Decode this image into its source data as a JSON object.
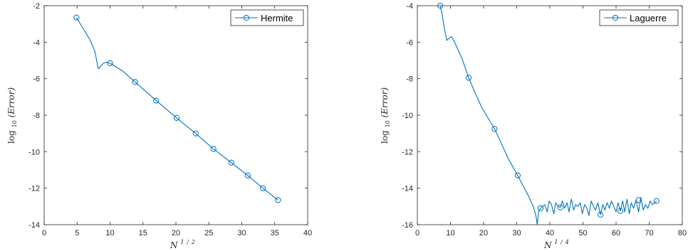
{
  "colors": {
    "line": "#0072bd",
    "axis": "#262626",
    "background": "#ffffff"
  },
  "chart_data": [
    {
      "type": "line",
      "title": "",
      "xlabel": {
        "base": "N",
        "exp_num": "1",
        "exp_den": "2"
      },
      "ylabel": {
        "prefix": "log",
        "sub": "10",
        "inner": "(Error)"
      },
      "xlim": [
        0,
        40
      ],
      "ylim": [
        -14,
        -2
      ],
      "xticks": [
        0,
        5,
        10,
        15,
        20,
        25,
        30,
        35,
        40
      ],
      "yticks": [
        -14,
        -12,
        -10,
        -8,
        -6,
        -4,
        -2
      ],
      "xtick_labels": [
        "0",
        "5",
        "10",
        "15",
        "20",
        "25",
        "30",
        "35",
        "40"
      ],
      "ytick_labels": [
        "-14",
        "-12",
        "-10",
        "-8",
        "-6",
        "-4",
        "-2"
      ],
      "grid": false,
      "legend_position": "top-right",
      "series": [
        {
          "name": "Hermite",
          "marker": "circle",
          "x": [
            4.9,
            6.0,
            7.0,
            7.7,
            8.2,
            8.5,
            9.0,
            9.5,
            10.0,
            12.0,
            13.8,
            17.0,
            20.1,
            23.0,
            25.7,
            28.4,
            30.9,
            33.2,
            35.5
          ],
          "y": [
            -2.65,
            -3.3,
            -3.9,
            -4.5,
            -5.45,
            -5.35,
            -5.15,
            -5.1,
            -5.15,
            -5.6,
            -6.18,
            -7.2,
            -8.15,
            -9.0,
            -9.85,
            -10.6,
            -11.3,
            -12.0,
            -12.65
          ],
          "marker_x": [
            4.9,
            10.0,
            13.8,
            17.0,
            20.1,
            23.0,
            25.7,
            28.4,
            30.9,
            33.2,
            35.5
          ],
          "marker_y": [
            -2.65,
            -5.15,
            -6.18,
            -7.2,
            -8.15,
            -9.0,
            -9.85,
            -10.6,
            -11.3,
            -12.0,
            -12.65
          ]
        }
      ]
    },
    {
      "type": "line",
      "title": "",
      "xlabel": {
        "base": "N",
        "exp_num": "1",
        "exp_den": "4"
      },
      "ylabel": {
        "prefix": "log",
        "sub": "10",
        "inner": "(Error)"
      },
      "xlim": [
        0,
        80
      ],
      "ylim": [
        -16,
        -4
      ],
      "xticks": [
        0,
        10,
        20,
        30,
        40,
        50,
        60,
        70,
        80
      ],
      "yticks": [
        -16,
        -14,
        -12,
        -10,
        -8,
        -6,
        -4
      ],
      "xtick_labels": [
        "0",
        "10",
        "20",
        "30",
        "40",
        "50",
        "60",
        "70",
        "80"
      ],
      "ytick_labels": [
        "-16",
        "-14",
        "-12",
        "-10",
        "-8",
        "-6",
        "-4"
      ],
      "grid": false,
      "legend_position": "top-right",
      "series": [
        {
          "name": "Laguerre",
          "marker": "circle",
          "x": [
            6.9,
            7.5,
            8.2,
            8.9,
            9.5,
            10.3,
            11.0,
            12.0,
            13.5,
            15.5,
            17.5,
            19.5,
            21.5,
            23.3,
            25.5,
            27.5,
            30.3,
            32.0,
            33.5,
            35.0,
            35.8,
            36.2,
            36.6,
            37.2,
            37.8,
            38.5,
            39.2,
            39.8,
            40.5,
            41.2,
            41.8,
            42.5,
            43.2,
            43.8,
            44.5,
            45.2,
            45.8,
            46.5,
            47.2,
            47.8,
            48.5,
            49.2,
            49.8,
            50.5,
            51.2,
            51.8,
            52.5,
            53.2,
            53.8,
            54.5,
            55.3,
            56.0,
            56.6,
            57.3,
            58.0,
            58.6,
            59.3,
            60.0,
            60.6,
            61.3,
            62.0,
            62.6,
            63.3,
            64.0,
            64.6,
            65.3,
            66.0,
            66.8,
            67.5,
            68.2,
            68.9,
            69.6,
            70.3,
            71.0,
            71.6,
            72.2
          ],
          "y": [
            -4.0,
            -4.5,
            -5.3,
            -5.9,
            -5.8,
            -5.7,
            -5.9,
            -6.3,
            -6.9,
            -7.95,
            -8.8,
            -9.6,
            -10.2,
            -10.75,
            -11.6,
            -12.4,
            -13.3,
            -13.9,
            -14.4,
            -15.0,
            -15.5,
            -16.0,
            -15.3,
            -15.1,
            -15.0,
            -14.9,
            -15.3,
            -14.7,
            -14.9,
            -15.4,
            -14.8,
            -15.0,
            -15.05,
            -14.7,
            -15.1,
            -14.8,
            -15.3,
            -14.6,
            -15.2,
            -14.9,
            -15.0,
            -14.8,
            -15.4,
            -14.9,
            -15.1,
            -15.5,
            -14.7,
            -15.0,
            -15.2,
            -14.8,
            -15.45,
            -14.9,
            -15.2,
            -14.8,
            -15.1,
            -14.7,
            -15.0,
            -15.3,
            -14.8,
            -15.25,
            -14.7,
            -15.3,
            -14.6,
            -15.4,
            -14.8,
            -15.1,
            -14.65,
            -15.3,
            -14.5,
            -15.2,
            -14.9,
            -15.1,
            -14.7,
            -14.9,
            -14.8,
            -14.7
          ],
          "marker_x": [
            6.9,
            15.5,
            23.3,
            30.3,
            37.2,
            43.2,
            55.3,
            61.3,
            66.8,
            72.2
          ],
          "marker_y": [
            -4.0,
            -7.95,
            -10.75,
            -13.3,
            -15.1,
            -15.05,
            -15.45,
            -15.25,
            -14.65,
            -14.7
          ]
        }
      ]
    }
  ]
}
